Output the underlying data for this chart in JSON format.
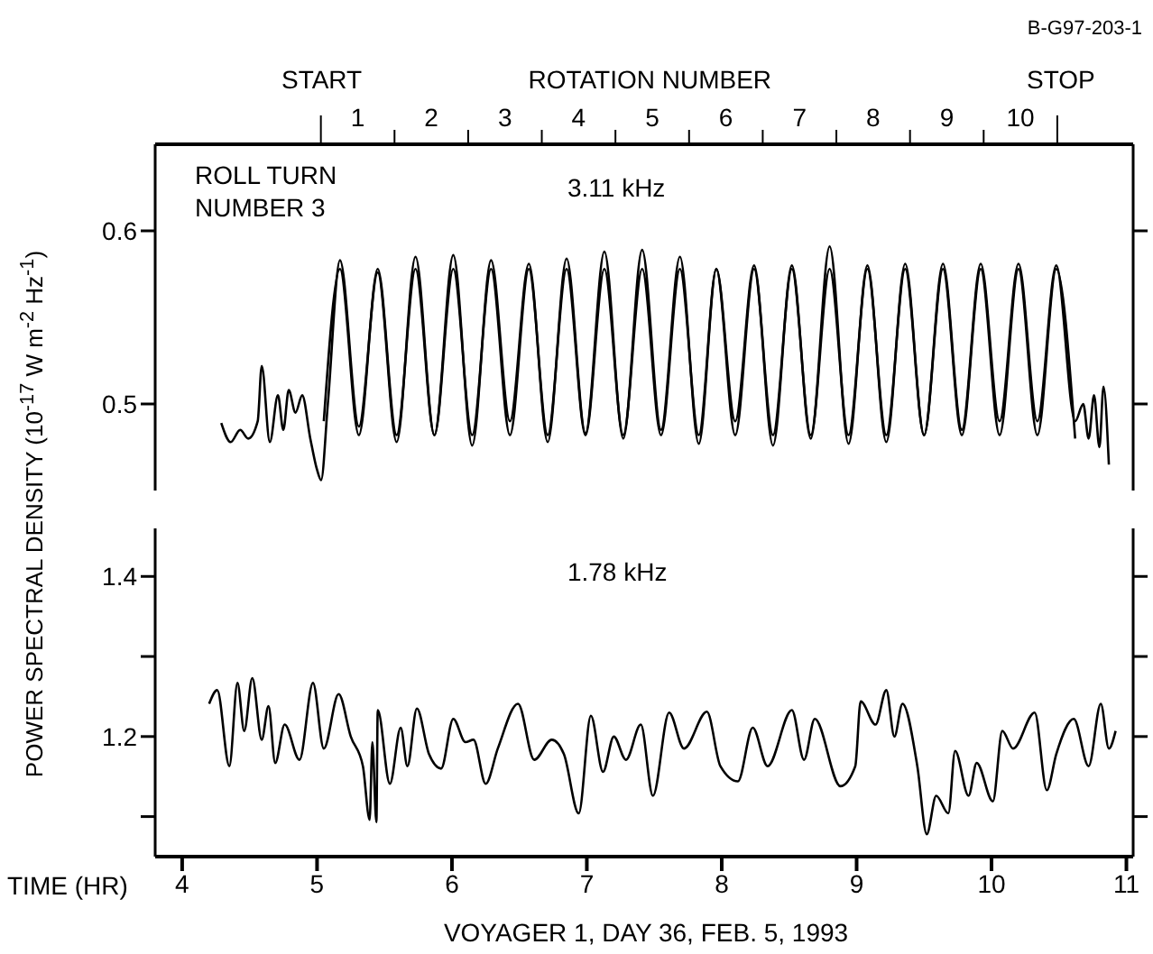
{
  "chart_data": [
    {
      "type": "line",
      "title": "3.11 kHz",
      "ylabel": "POWER SPECTRAL DENSITY (10$^{-17}$ W m$^{-2}$ Hz$^{-1}$)",
      "x2label": "ROTATION NUMBER",
      "marker": "none",
      "tick_labels": "y",
      "annotations": [
        "B-G97-203-1",
        "ROLL TURN NUMBER 3",
        {
          "text": "START",
          "x": 5.03
        },
        {
          "text": "STOP",
          "x": 10.49
        }
      ],
      "xlim": [
        3.8,
        11.05
      ],
      "x2lim": [
        -1.75,
        11.53
      ],
      "ylim": [
        0.45,
        0.65
      ],
      "yticks": [
        0.5,
        0.6
      ],
      "x2ticks": [
        {
          "value": 0.5,
          "label": null
        },
        1,
        {
          "value": 1.5,
          "label": null
        },
        2,
        {
          "value": 2.5,
          "label": null
        },
        3,
        {
          "value": 3.5,
          "label": null
        },
        4,
        {
          "value": 4.5,
          "label": null
        },
        5,
        {
          "value": 5.5,
          "label": null
        },
        6,
        {
          "value": 6.5,
          "label": null
        },
        7,
        {
          "value": 7.5,
          "label": null
        },
        8,
        {
          "value": 8.5,
          "label": null
        },
        9,
        {
          "value": 9.5,
          "label": null
        },
        10,
        {
          "value": 10.5,
          "label": null
        }
      ],
      "series": [
        {
          "color": "#000000",
          "x": [
            4.29,
            4.36,
            4.43,
            4.49,
            4.56,
            4.59,
            4.65,
            4.71,
            4.75,
            4.79,
            4.84,
            4.89,
            4.95,
            5.0,
            5.03,
            5.08,
            5.17,
            5.31,
            5.45,
            5.59,
            5.73,
            5.87,
            6.01,
            6.15,
            6.29,
            6.43,
            6.57,
            6.71,
            6.85,
            6.99,
            7.13,
            7.27,
            7.41,
            7.55,
            7.69,
            7.83,
            7.96,
            8.1,
            8.24,
            8.38,
            8.52,
            8.66,
            8.8,
            8.94,
            9.08,
            9.22,
            9.36,
            9.5,
            9.64,
            9.78,
            9.92,
            10.06,
            10.2,
            10.34,
            10.48,
            10.62,
            10.68,
            10.72,
            10.76,
            10.8,
            10.83,
            10.87
          ],
          "values": [
            0.489,
            0.478,
            0.485,
            0.48,
            0.49,
            0.522,
            0.478,
            0.505,
            0.485,
            0.508,
            0.495,
            0.505,
            0.48,
            0.462,
            0.456,
            0.5,
            0.583,
            0.487,
            0.576,
            0.478,
            0.585,
            0.482,
            0.586,
            0.476,
            0.583,
            0.49,
            0.581,
            0.478,
            0.584,
            0.483,
            0.588,
            0.48,
            0.589,
            0.485,
            0.585,
            0.477,
            0.578,
            0.49,
            0.58,
            0.476,
            0.58,
            0.48,
            0.591,
            0.477,
            0.58,
            0.478,
            0.581,
            0.482,
            0.581,
            0.485,
            0.581,
            0.49,
            0.581,
            0.49,
            0.58,
            0.49,
            0.5,
            0.48,
            0.505,
            0.475,
            0.51,
            0.465
          ]
        },
        {
          "color": "#000000",
          "x": [
            5.05,
            5.17,
            5.31,
            5.45,
            5.59,
            5.73,
            5.87,
            6.01,
            6.15,
            6.29,
            6.43,
            6.57,
            6.71,
            6.85,
            6.99,
            7.13,
            7.27,
            7.41,
            7.55,
            7.69,
            7.83,
            7.96,
            8.1,
            8.24,
            8.38,
            8.52,
            8.66,
            8.8,
            8.94,
            9.08,
            9.22,
            9.36,
            9.5,
            9.64,
            9.78,
            9.92,
            10.06,
            10.2,
            10.34,
            10.48,
            10.62
          ],
          "values": [
            0.49,
            0.578,
            0.482,
            0.578,
            0.482,
            0.578,
            0.482,
            0.578,
            0.482,
            0.578,
            0.482,
            0.578,
            0.482,
            0.578,
            0.482,
            0.578,
            0.482,
            0.578,
            0.482,
            0.578,
            0.482,
            0.578,
            0.482,
            0.578,
            0.482,
            0.578,
            0.482,
            0.578,
            0.482,
            0.578,
            0.482,
            0.578,
            0.482,
            0.578,
            0.482,
            0.578,
            0.482,
            0.578,
            0.482,
            0.578,
            0.48
          ]
        }
      ]
    },
    {
      "type": "line",
      "title": "1.78 kHz",
      "xlabel": "TIME (HR)",
      "marker": "none",
      "annotations": [
        "VOYAGER 1, DAY 36, FEB. 5, 1993"
      ],
      "xlim": [
        3.8,
        11.05
      ],
      "xticks": [
        4,
        5,
        6,
        7,
        8,
        9,
        10,
        11
      ],
      "ylim": [
        1.05,
        1.46
      ],
      "yticks": [
        {
          "value": 1.1,
          "label": null
        },
        1.2,
        {
          "value": 1.3,
          "label": null
        },
        1.4
      ],
      "series": [
        {
          "color": "#000000",
          "x": [
            4.2,
            4.26,
            4.35,
            4.41,
            4.46,
            4.52,
            4.59,
            4.64,
            4.69,
            4.76,
            4.87,
            4.97,
            5.05,
            5.16,
            5.25,
            5.34,
            5.39,
            5.41,
            5.44,
            5.45,
            5.54,
            5.62,
            5.67,
            5.74,
            5.83,
            5.92,
            6.01,
            6.1,
            6.16,
            6.25,
            6.34,
            6.49,
            6.61,
            6.74,
            6.83,
            6.94,
            7.03,
            7.12,
            7.2,
            7.29,
            7.4,
            7.49,
            7.61,
            7.72,
            7.89,
            7.99,
            8.12,
            8.23,
            8.34,
            8.52,
            8.61,
            8.69,
            8.88,
            8.99,
            9.03,
            9.14,
            9.22,
            9.28,
            9.34,
            9.45,
            9.52,
            9.59,
            9.68,
            9.73,
            9.83,
            9.89,
            10.01,
            10.08,
            10.16,
            10.32,
            10.41,
            10.48,
            10.61,
            10.72,
            10.81,
            10.87,
            10.92
          ],
          "values": [
            1.241,
            1.258,
            1.163,
            1.267,
            1.207,
            1.273,
            1.196,
            1.238,
            1.167,
            1.215,
            1.171,
            1.267,
            1.185,
            1.253,
            1.2,
            1.163,
            1.096,
            1.193,
            1.093,
            1.233,
            1.141,
            1.211,
            1.163,
            1.235,
            1.178,
            1.16,
            1.222,
            1.193,
            1.196,
            1.141,
            1.185,
            1.241,
            1.171,
            1.196,
            1.178,
            1.104,
            1.226,
            1.156,
            1.2,
            1.171,
            1.215,
            1.126,
            1.23,
            1.185,
            1.231,
            1.163,
            1.144,
            1.211,
            1.163,
            1.233,
            1.171,
            1.222,
            1.138,
            1.163,
            1.244,
            1.215,
            1.258,
            1.2,
            1.241,
            1.163,
            1.078,
            1.126,
            1.104,
            1.182,
            1.126,
            1.167,
            1.119,
            1.207,
            1.185,
            1.23,
            1.133,
            1.178,
            1.222,
            1.163,
            1.241,
            1.185,
            1.207
          ]
        }
      ]
    }
  ]
}
